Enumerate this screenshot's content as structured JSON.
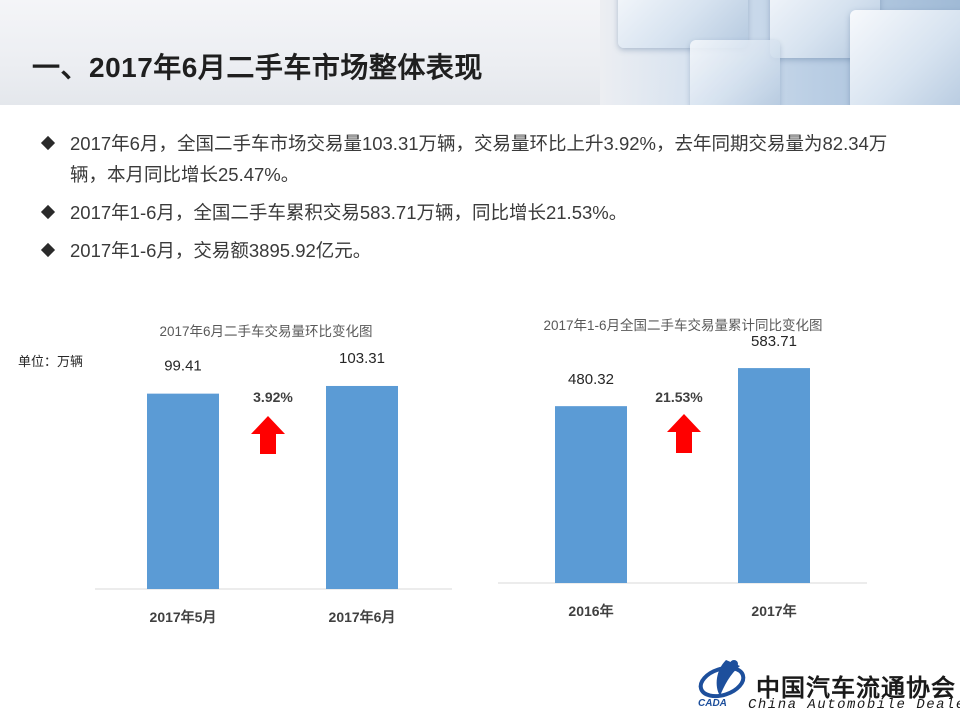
{
  "header": {
    "title": "一、2017年6月二手车市场整体表现"
  },
  "bullets": [
    "2017年6月，全国二手车市场交易量103.31万辆，交易量环比上升3.92%，去年同期交易量为82.34万辆，本月同比增长25.47%。",
    "2017年1-6月，全国二手车累积交易583.71万辆，同比增长21.53%。",
    "2017年1-6月，交易额3895.92亿元。"
  ],
  "chart_data": [
    {
      "type": "bar",
      "title": "2017年6月二手车交易量环比变化图",
      "unit_label": "单位：万辆",
      "categories": [
        "2017年5月",
        "2017年6月"
      ],
      "values": [
        99.41,
        103.31
      ],
      "value_labels": [
        "99.41",
        "103.31"
      ],
      "change_label": "3.92%",
      "change_direction": "up",
      "ylim": [
        0,
        115
      ],
      "grid": false,
      "bar_color": "#5b9bd5",
      "arrow_color": "#ff0000"
    },
    {
      "type": "bar",
      "title": "2017年1-6月全国二手车交易量累计同比变化图",
      "categories": [
        "2016年",
        "2017年"
      ],
      "values": [
        480.32,
        583.71
      ],
      "value_labels": [
        "480.32",
        "583.71"
      ],
      "change_label": "21.53%",
      "change_direction": "up",
      "ylim": [
        0,
        660
      ],
      "grid": false,
      "bar_color": "#5b9bd5",
      "arrow_color": "#ff0000"
    }
  ],
  "logo": {
    "name_cn": "中国汽车流通协会",
    "name_en": "China  Automobile Dealers",
    "mark_text": "CADA"
  }
}
